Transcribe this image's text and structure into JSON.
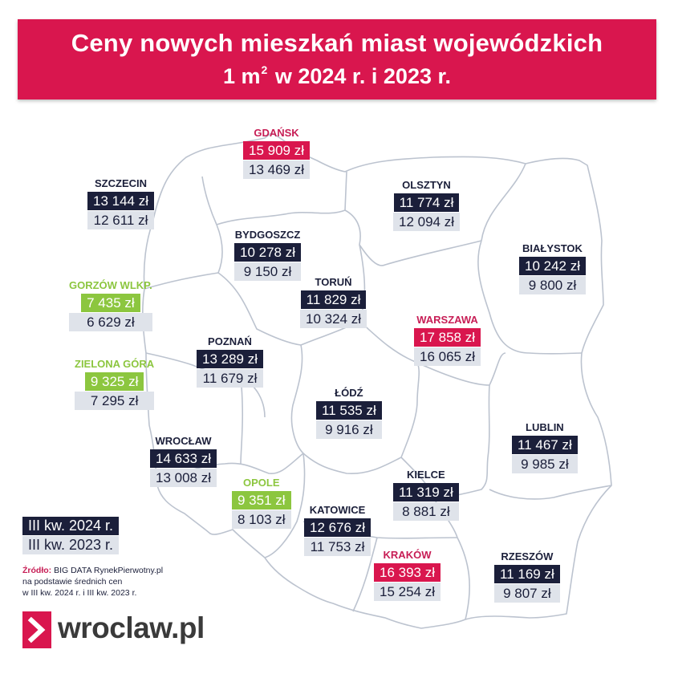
{
  "header": {
    "title_line1": "Ceny nowych mieszkań miast wojewódzkich",
    "title_line2_prefix": "1 m",
    "title_line2_sup": "2",
    "title_line2_suffix": " w 2024 r. i 2023 r."
  },
  "cities": [
    {
      "name": "GDAŃSK",
      "price_2024": "15 909 zł",
      "price_2023": "13 469 zł",
      "highlight": "pink"
    },
    {
      "name": "SZCZECIN",
      "price_2024": "13 144 zł",
      "price_2023": "12 611 zł",
      "highlight": "navy"
    },
    {
      "name": "OLSZTYN",
      "price_2024": "11 774 zł",
      "price_2023": "12 094 zł",
      "highlight": "navy"
    },
    {
      "name": "BYDGOSZCZ",
      "price_2024": "10 278 zł",
      "price_2023": "9 150 zł",
      "highlight": "navy"
    },
    {
      "name": "BIAŁYSTOK",
      "price_2024": "10 242 zł",
      "price_2023": "9 800 zł",
      "highlight": "navy"
    },
    {
      "name": "GORZÓW WLKP.",
      "price_2024": "7 435 zł",
      "price_2023": "6 629 zł",
      "highlight": "green"
    },
    {
      "name": "TORUŃ",
      "price_2024": "11 829 zł",
      "price_2023": "10 324 zł",
      "highlight": "navy"
    },
    {
      "name": "WARSZAWA",
      "price_2024": "17 858 zł",
      "price_2023": "16 065 zł",
      "highlight": "pink"
    },
    {
      "name": "POZNAŃ",
      "price_2024": "13 289 zł",
      "price_2023": "11 679 zł",
      "highlight": "navy"
    },
    {
      "name": "ZIELONA GÓRA",
      "price_2024": "9 325 zł",
      "price_2023": "7 295 zł",
      "highlight": "green"
    },
    {
      "name": "ŁÓDŹ",
      "price_2024": "11 535 zł",
      "price_2023": "9 916 zł",
      "highlight": "navy"
    },
    {
      "name": "LUBLIN",
      "price_2024": "11 467 zł",
      "price_2023": "9 985 zł",
      "highlight": "navy"
    },
    {
      "name": "WROCŁAW",
      "price_2024": "14 633 zł",
      "price_2023": "13 008 zł",
      "highlight": "navy"
    },
    {
      "name": "OPOLE",
      "price_2024": "9 351 zł",
      "price_2023": "8 103 zł",
      "highlight": "green"
    },
    {
      "name": "KIELCE",
      "price_2024": "11 319 zł",
      "price_2023": "8 881 zł",
      "highlight": "navy"
    },
    {
      "name": "KATOWICE",
      "price_2024": "12 676 zł",
      "price_2023": "11 753 zł",
      "highlight": "navy"
    },
    {
      "name": "KRAKÓW",
      "price_2024": "16 393 zł",
      "price_2023": "15 254 zł",
      "highlight": "pink"
    },
    {
      "name": "RZESZÓW",
      "price_2024": "11 169 zł",
      "price_2023": "9 807 zł",
      "highlight": "navy"
    }
  ],
  "legend": {
    "label_2024": "III kw. 2024 r.",
    "label_2023": "III kw. 2023 r."
  },
  "source": {
    "label": "Źródło:",
    "line1": " BIG DATA RynekPierwotny.pl",
    "line2": "na podstawie średnich cen",
    "line3": "w III kw. 2024 r. i III kw. 2023 r."
  },
  "logo": {
    "text": "wroclaw.pl"
  },
  "colors": {
    "banner": "#d9164e",
    "navy": "#1b1f3a",
    "pink": "#d9164e",
    "green": "#8cc63f",
    "light_row": "#dfe3ea",
    "map_border": "#bcc3cf"
  }
}
